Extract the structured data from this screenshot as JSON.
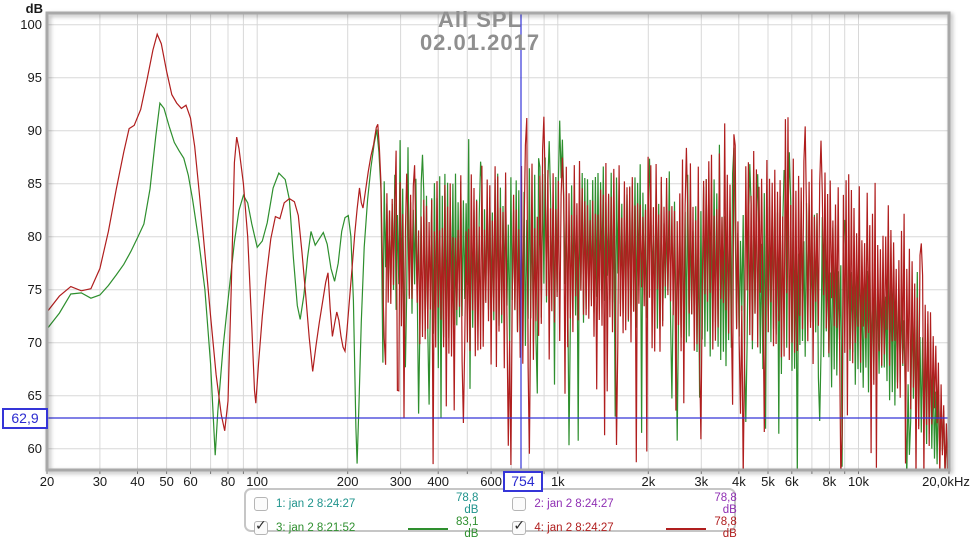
{
  "title": {
    "line1": "All SPL",
    "line2": "02.01.2017"
  },
  "axes": {
    "y_unit": "dB",
    "x_unit": "Hz",
    "y_ticks": [
      100,
      95,
      90,
      85,
      80,
      75,
      70,
      65,
      60
    ],
    "x_ticks": [
      {
        "f": 20,
        "label": "20"
      },
      {
        "f": 30,
        "label": "30"
      },
      {
        "f": 40,
        "label": "40"
      },
      {
        "f": 50,
        "label": "50"
      },
      {
        "f": 60,
        "label": "60"
      },
      {
        "f": 80,
        "label": "80"
      },
      {
        "f": 100,
        "label": "100"
      },
      {
        "f": 200,
        "label": "200"
      },
      {
        "f": 300,
        "label": "300"
      },
      {
        "f": 400,
        "label": "400"
      },
      {
        "f": 600,
        "label": "600"
      },
      {
        "f": 1000,
        "label": "1k"
      },
      {
        "f": 2000,
        "label": "2k"
      },
      {
        "f": 3000,
        "label": "3k"
      },
      {
        "f": 4000,
        "label": "4k"
      },
      {
        "f": 5000,
        "label": "5k"
      },
      {
        "f": 6000,
        "label": "6k"
      },
      {
        "f": 8000,
        "label": "8k"
      },
      {
        "f": 10000,
        "label": "10k"
      },
      {
        "f": 20000,
        "label": "20,0k"
      }
    ]
  },
  "cursor": {
    "freq": 754,
    "freq_label": "754",
    "db": 62.9,
    "db_label": "62,9",
    "color": "#3535d8"
  },
  "colors": {
    "grid": "#d8d8d8",
    "frame": "#a8a8a8",
    "title": "#8f8f8f",
    "trace_green": "#2e8f2e",
    "trace_red": "#b01e1e",
    "legend_teal": "#1f938c",
    "legend_purple": "#8f2fb3"
  },
  "legend": {
    "entries": [
      {
        "label": "1: jan 2 8:24:27",
        "value": "78,8 dB",
        "color": "#1f938c",
        "checked": false,
        "swatch": false
      },
      {
        "label": "2: jan 2 8:24:27",
        "value": "78,8 dB",
        "color": "#8f2fb3",
        "checked": false,
        "swatch": false
      },
      {
        "label": "3: jan 2 8:21:52",
        "value": "83,1 dB",
        "color": "#2e8f2e",
        "checked": true,
        "swatch": true
      },
      {
        "label": "4: jan 2 8:24:27",
        "value": "78,8 dB",
        "color": "#b01e1e",
        "checked": true,
        "swatch": true
      }
    ]
  },
  "chart_data": {
    "type": "line",
    "x_scale": "log",
    "xlabel": "Hz",
    "ylabel": "dB",
    "xlim": [
      20,
      20000
    ],
    "ylim": [
      58,
      101.1
    ],
    "grid": true,
    "legend_position": "bottom",
    "series": [
      {
        "name": "3: jan 2 8:21:52",
        "color": "#2e8f2e",
        "avg_level": "83,1 dB",
        "points": [
          [
            20,
            71.3
          ],
          [
            22,
            72.8
          ],
          [
            24,
            74.6
          ],
          [
            26,
            74.7
          ],
          [
            28,
            74.2
          ],
          [
            30,
            74.5
          ],
          [
            32,
            75.4
          ],
          [
            34,
            76.4
          ],
          [
            36,
            77.4
          ],
          [
            38,
            78.6
          ],
          [
            40,
            79.9
          ],
          [
            42,
            81.2
          ],
          [
            44,
            84.5
          ],
          [
            46,
            89.5
          ],
          [
            47.5,
            92.6
          ],
          [
            49,
            92.1
          ],
          [
            51,
            90.4
          ],
          [
            53,
            88.9
          ],
          [
            55,
            88.1
          ],
          [
            57,
            87.4
          ],
          [
            59,
            85.8
          ],
          [
            61,
            83.5
          ],
          [
            64,
            79.5
          ],
          [
            67,
            75
          ],
          [
            70,
            68
          ],
          [
            72.5,
            59.4
          ],
          [
            74,
            63.5
          ],
          [
            77,
            69.5
          ],
          [
            80,
            74
          ],
          [
            84,
            79.5
          ],
          [
            87,
            82.5
          ],
          [
            90,
            83.9
          ],
          [
            93,
            83.2
          ],
          [
            96,
            81.2
          ],
          [
            100,
            79
          ],
          [
            104,
            79.6
          ],
          [
            108,
            81.3
          ],
          [
            113,
            84.6
          ],
          [
            118,
            86
          ],
          [
            124,
            85.4
          ],
          [
            128,
            83.5
          ],
          [
            132,
            78
          ],
          [
            136,
            73.5
          ],
          [
            139,
            72.2
          ],
          [
            143,
            74.5
          ],
          [
            147,
            78
          ],
          [
            151,
            80.5
          ],
          [
            156,
            79.2
          ],
          [
            161,
            79.8
          ],
          [
            166,
            80.4
          ],
          [
            171,
            79.3
          ],
          [
            176,
            77
          ],
          [
            181,
            75.8
          ],
          [
            186,
            77.5
          ],
          [
            191,
            80.5
          ],
          [
            196,
            81.8
          ],
          [
            201,
            82
          ],
          [
            205,
            80
          ],
          [
            209,
            74
          ],
          [
            213,
            62
          ],
          [
            215,
            58.6
          ],
          [
            218,
            64
          ],
          [
            222,
            72
          ],
          [
            227,
            79
          ],
          [
            233,
            83.5
          ],
          [
            239,
            86.5
          ],
          [
            245,
            88.8
          ],
          [
            250,
            90.1
          ],
          [
            254,
            88
          ],
          [
            258,
            84.5
          ]
        ],
        "noise": {
          "from": 262,
          "to": 20000,
          "samples": 430,
          "seed": 7,
          "deep_p": 0.07,
          "up_p": 0.05,
          "mid": [
            [
              262,
              81
            ],
            [
              280,
              79.5
            ],
            [
              320,
              78.6
            ],
            [
              400,
              78.3
            ],
            [
              500,
              78
            ],
            [
              650,
              78
            ],
            [
              800,
              78.2
            ],
            [
              1000,
              79
            ],
            [
              1300,
              79.2
            ],
            [
              1700,
              79
            ],
            [
              2200,
              78.3
            ],
            [
              3000,
              77.2
            ],
            [
              4000,
              76.2
            ],
            [
              5000,
              76
            ],
            [
              6000,
              75.4
            ],
            [
              8000,
              74
            ],
            [
              10000,
              73
            ],
            [
              12000,
              71.8
            ],
            [
              14000,
              70.3
            ],
            [
              16000,
              67.5
            ],
            [
              18000,
              63.5
            ],
            [
              19500,
              60
            ],
            [
              20000,
              58.5
            ]
          ],
          "half": [
            [
              262,
              5
            ],
            [
              300,
              6.5
            ],
            [
              400,
              7
            ],
            [
              600,
              7.5
            ],
            [
              800,
              8
            ],
            [
              1000,
              7.5
            ],
            [
              1500,
              7
            ],
            [
              2000,
              7.5
            ],
            [
              3000,
              8
            ],
            [
              4000,
              8
            ],
            [
              6000,
              8
            ],
            [
              8000,
              7.5
            ],
            [
              10000,
              7
            ],
            [
              12000,
              6.5
            ],
            [
              14000,
              6
            ],
            [
              16000,
              5.5
            ],
            [
              18000,
              4.5
            ],
            [
              20000,
              3
            ]
          ]
        }
      },
      {
        "name": "4: jan 2 8:24:27",
        "color": "#b01e1e",
        "avg_level": "78,8 dB",
        "points": [
          [
            20,
            72.9
          ],
          [
            22,
            74.4
          ],
          [
            24,
            75.3
          ],
          [
            26,
            74.9
          ],
          [
            28,
            75.1
          ],
          [
            30,
            77
          ],
          [
            32,
            80.5
          ],
          [
            34,
            84.5
          ],
          [
            36,
            88
          ],
          [
            37.5,
            90.2
          ],
          [
            39,
            90.5
          ],
          [
            41,
            92
          ],
          [
            43,
            94.8
          ],
          [
            45,
            97.6
          ],
          [
            46.5,
            99.1
          ],
          [
            48,
            98.2
          ],
          [
            50,
            95.6
          ],
          [
            52,
            93.4
          ],
          [
            54,
            92.6
          ],
          [
            56,
            92.1
          ],
          [
            58,
            92.4
          ],
          [
            60,
            91.2
          ],
          [
            62,
            88.5
          ],
          [
            64,
            84.5
          ],
          [
            66,
            80.5
          ],
          [
            68,
            76.5
          ],
          [
            70,
            72.5
          ],
          [
            73,
            67
          ],
          [
            76,
            63.2
          ],
          [
            78,
            61.7
          ],
          [
            80,
            64.5
          ],
          [
            82,
            75
          ],
          [
            84,
            87
          ],
          [
            85.5,
            89.4
          ],
          [
            87,
            88.3
          ],
          [
            90,
            85
          ],
          [
            93,
            80
          ],
          [
            96,
            71.5
          ],
          [
            98,
            65.5
          ],
          [
            99,
            64.3
          ],
          [
            101,
            68
          ],
          [
            104,
            72.5
          ],
          [
            107,
            76
          ],
          [
            111,
            79.8
          ],
          [
            115,
            81.9
          ],
          [
            119,
            81.7
          ],
          [
            123,
            83.2
          ],
          [
            128,
            83.6
          ],
          [
            133,
            83.3
          ],
          [
            137,
            82
          ],
          [
            141,
            78.5
          ],
          [
            145,
            74.5
          ],
          [
            149,
            70.5
          ],
          [
            153,
            67.3
          ],
          [
            157,
            69.8
          ],
          [
            161,
            71.9
          ],
          [
            165,
            73.8
          ],
          [
            169,
            75.7
          ],
          [
            172,
            76.6
          ],
          [
            175,
            73.2
          ],
          [
            178,
            70.6
          ],
          [
            181,
            71.8
          ],
          [
            184,
            72.9
          ],
          [
            187,
            72.1
          ],
          [
            190,
            70.6
          ],
          [
            193,
            69.6
          ],
          [
            196,
            69.2
          ],
          [
            199,
            71.2
          ],
          [
            203,
            74.2
          ],
          [
            207,
            77.2
          ],
          [
            211,
            80.2
          ],
          [
            215,
            82.6
          ],
          [
            219,
            84.6
          ],
          [
            222,
            83.2
          ],
          [
            225,
            82.7
          ],
          [
            229,
            84.2
          ],
          [
            234,
            86.1
          ],
          [
            239,
            87.6
          ],
          [
            244,
            88.7
          ],
          [
            249,
            90.3
          ],
          [
            252,
            90.6
          ],
          [
            255,
            88.3
          ],
          [
            258,
            85.2
          ]
        ],
        "noise": {
          "from": 262,
          "to": 20000,
          "samples": 430,
          "seed": 13,
          "deep_p": 0.1,
          "up_p": 0.05,
          "mid": [
            [
              262,
              80
            ],
            [
              280,
              78.5
            ],
            [
              320,
              77.3
            ],
            [
              400,
              77
            ],
            [
              500,
              76.8
            ],
            [
              650,
              77
            ],
            [
              800,
              77.2
            ],
            [
              1000,
              77.8
            ],
            [
              1300,
              78.3
            ],
            [
              1700,
              78.5
            ],
            [
              2200,
              78.4
            ],
            [
              3000,
              78.2
            ],
            [
              4000,
              78.2
            ],
            [
              5000,
              78.5
            ],
            [
              6000,
              78.2
            ],
            [
              8000,
              77.6
            ],
            [
              10000,
              76.6
            ],
            [
              12000,
              75.2
            ],
            [
              14000,
              73.2
            ],
            [
              16000,
              70.2
            ],
            [
              18000,
              66
            ],
            [
              19300,
              61.5
            ],
            [
              20000,
              58
            ]
          ],
          "half": [
            [
              262,
              6
            ],
            [
              300,
              7
            ],
            [
              400,
              8
            ],
            [
              600,
              8.5
            ],
            [
              800,
              9
            ],
            [
              1000,
              8.5
            ],
            [
              1500,
              8
            ],
            [
              2000,
              8.5
            ],
            [
              3000,
              9
            ],
            [
              4000,
              9
            ],
            [
              6000,
              9
            ],
            [
              8000,
              9
            ],
            [
              10000,
              9
            ],
            [
              12000,
              9
            ],
            [
              14000,
              8.5
            ],
            [
              16000,
              8
            ],
            [
              18000,
              6.5
            ],
            [
              20000,
              3.5
            ]
          ]
        }
      }
    ]
  }
}
